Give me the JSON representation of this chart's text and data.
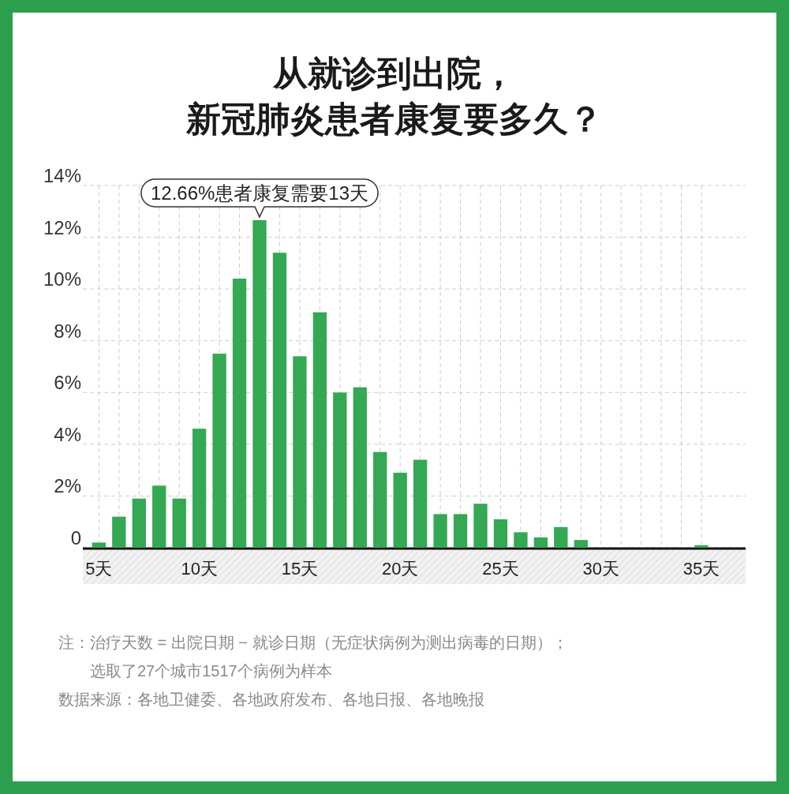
{
  "chart_data": {
    "type": "bar",
    "title": "从就诊到出院，新冠肺炎患者康复要多久？",
    "x": [
      5,
      6,
      7,
      8,
      9,
      10,
      11,
      12,
      13,
      14,
      15,
      16,
      17,
      18,
      19,
      20,
      21,
      22,
      23,
      24,
      25,
      26,
      27,
      28,
      29,
      30,
      31,
      32,
      33,
      34,
      35
    ],
    "values": [
      0.2,
      1.2,
      1.9,
      2.4,
      1.9,
      4.6,
      7.5,
      10.4,
      12.66,
      11.4,
      7.4,
      9.1,
      6.0,
      6.2,
      3.7,
      2.9,
      3.4,
      1.3,
      1.3,
      1.7,
      1.1,
      0.6,
      0.4,
      0.8,
      0.3,
      0,
      0,
      0,
      0,
      0,
      0.1
    ],
    "color": "#34a853",
    "xlim": [
      4.2,
      37.2
    ],
    "xticks": [
      {
        "value": 5,
        "label": "5天"
      },
      {
        "value": 6,
        "label": null
      },
      {
        "value": 7,
        "label": null
      },
      {
        "value": 8,
        "label": null
      },
      {
        "value": 9,
        "label": null
      },
      {
        "value": 10,
        "label": "10天"
      },
      {
        "value": 11,
        "label": null
      },
      {
        "value": 12,
        "label": null
      },
      {
        "value": 13,
        "label": null
      },
      {
        "value": 14,
        "label": null
      },
      {
        "value": 15,
        "label": "15天"
      },
      {
        "value": 16,
        "label": null
      },
      {
        "value": 17,
        "label": null
      },
      {
        "value": 18,
        "label": null
      },
      {
        "value": 19,
        "label": null
      },
      {
        "value": 20,
        "label": "20天"
      },
      {
        "value": 21,
        "label": null
      },
      {
        "value": 22,
        "label": null
      },
      {
        "value": 23,
        "label": null
      },
      {
        "value": 24,
        "label": null
      },
      {
        "value": 25,
        "label": "25天"
      },
      {
        "value": 26,
        "label": null
      },
      {
        "value": 27,
        "label": null
      },
      {
        "value": 28,
        "label": null
      },
      {
        "value": 29,
        "label": null
      },
      {
        "value": 30,
        "label": "30天"
      },
      {
        "value": 31,
        "label": null
      },
      {
        "value": 32,
        "label": null
      },
      {
        "value": 33,
        "label": null
      },
      {
        "value": 34,
        "label": null
      },
      {
        "value": 35,
        "label": "35天"
      }
    ],
    "ylim": [
      0,
      14
    ],
    "yticks": [
      {
        "value": 0,
        "label": "0"
      },
      {
        "value": 2,
        "label": "2%"
      },
      {
        "value": 4,
        "label": "4%"
      },
      {
        "value": 6,
        "label": "6%"
      },
      {
        "value": 8,
        "label": "8%"
      },
      {
        "value": 10,
        "label": "10%"
      },
      {
        "value": 12,
        "label": "12%"
      },
      {
        "value": 14,
        "label": "14%"
      }
    ],
    "grid": true,
    "annotations": [
      {
        "text": "12.66%患者康复需要13天",
        "x": 13,
        "y": 12.66
      },
      "注：治疗天数 = 出院日期 − 就诊日期（无症状病例为测出病毒的日期）；选取了27个城市1517个病例为样本",
      "数据来源：各地卫健委、各地政府发布、各地日报、各地晚报"
    ]
  }
}
